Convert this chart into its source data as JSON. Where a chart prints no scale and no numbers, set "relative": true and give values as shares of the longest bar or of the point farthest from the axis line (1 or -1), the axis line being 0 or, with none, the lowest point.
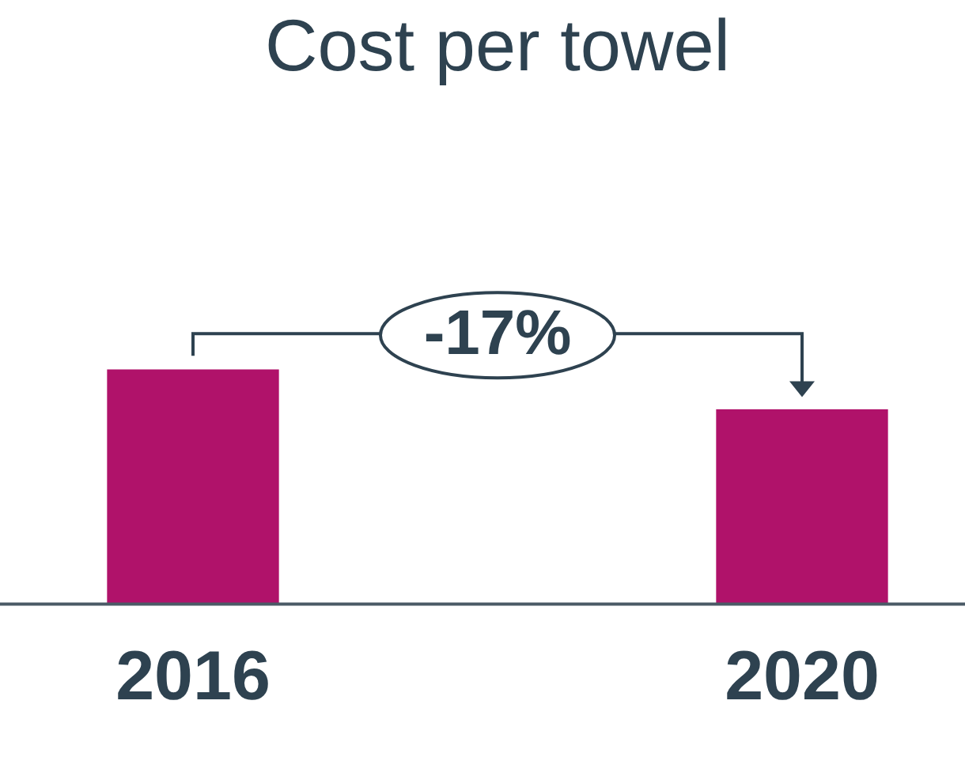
{
  "chart_data": {
    "type": "bar",
    "title": "Cost per towel",
    "categories": [
      "2016",
      "2020"
    ],
    "values": [
      1,
      0.83
    ],
    "color": "#b0126a",
    "relative": true,
    "annotations": [
      "-17%"
    ]
  }
}
